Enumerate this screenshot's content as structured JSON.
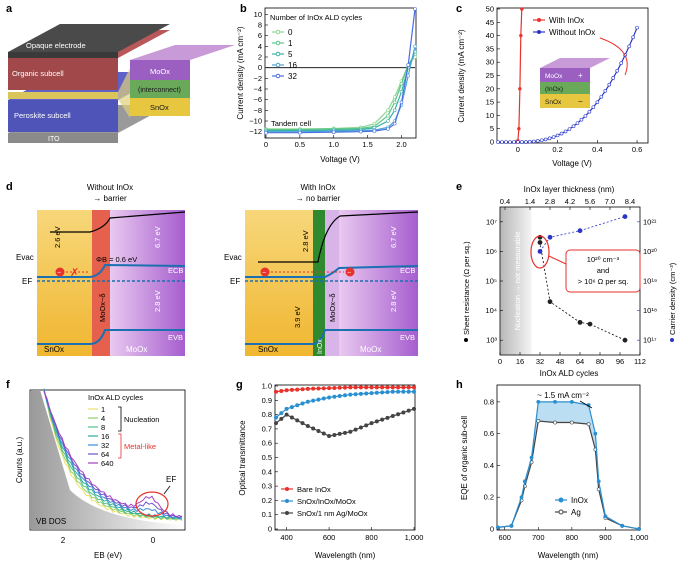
{
  "panels": {
    "a": {
      "letter": "a",
      "layers": [
        "Opaque electrode",
        "Organic subcell",
        "Peroskite subcell",
        "ITO"
      ],
      "interconnect_layers": [
        "MoOx",
        "(interconnect)",
        "SnOx"
      ]
    },
    "b": {
      "letter": "b",
      "ylabel": "Current density (mA cm⁻²)",
      "xlabel": "Voltage (V)",
      "legend_title": "Number of InOx ALD cycles",
      "cycles": [
        "0",
        "1",
        "5",
        "16",
        "32"
      ],
      "colors": [
        "#8fd68f",
        "#5cc68a",
        "#3bb3a4",
        "#4ba3d8",
        "#4a6fe0"
      ],
      "note": "Tandem cell",
      "xticks": [
        "0",
        "0.5",
        "1.0",
        "1.5",
        "2.0"
      ],
      "yticks": [
        "10",
        "8",
        "6",
        "4",
        "2",
        "0",
        "−2",
        "−4",
        "−6",
        "−8",
        "−10",
        "−12"
      ]
    },
    "c": {
      "letter": "c",
      "ylabel": "Current density (mA cm⁻²)",
      "xlabel": "Voltage (V)",
      "legend": [
        "With InOx",
        "Without InOx"
      ],
      "colors": [
        "#e8322c",
        "#2a35c8"
      ],
      "stack": [
        "MoOx",
        "(InOx)",
        "SnOx"
      ],
      "signs": [
        "+",
        "−"
      ],
      "xticks": [
        "0",
        "0.2",
        "0.4",
        "0.6"
      ],
      "yticks": [
        "0",
        "5",
        "10",
        "15",
        "20",
        "25",
        "30",
        "35",
        "40",
        "45",
        "50"
      ]
    },
    "d": {
      "letter": "d",
      "left": {
        "title": "Without InOx",
        "subtitle": "→ barrier",
        "energies": [
          "2.6 eV",
          "ΦB = 0.6 eV",
          "6.7 eV",
          "2.8 eV"
        ],
        "levels": [
          "Evac",
          "EF",
          "ECB",
          "EVB"
        ],
        "materials": [
          "SnOx",
          "MoOx−δ",
          "MoOx"
        ]
      },
      "right": {
        "title": "With InOx",
        "subtitle": "→ no barrier",
        "energies": [
          "2.8 eV",
          "6.7 eV",
          "2.8 eV",
          "3.9 eV"
        ],
        "levels": [
          "Evac",
          "EF",
          "ECB",
          "EVB"
        ],
        "materials": [
          "SnOx",
          "InOx",
          "MoOx−δ",
          "MoOx"
        ]
      }
    },
    "e": {
      "letter": "e",
      "top_axis_label": "InOx layer thickness (nm)",
      "top_ticks": [
        "0.4",
        "1.4",
        "2.8",
        "4.2",
        "5.6",
        "7.0",
        "8.4"
      ],
      "xlabel": "InOx ALD cycles",
      "xticks": [
        "0",
        "16",
        "32",
        "48",
        "64",
        "80",
        "96",
        "112"
      ],
      "ylabel_left": "Sheet resistance (Ω per sq.)",
      "ylabel_right": "Carrier density (cm⁻³)",
      "left_ticks": [
        "10³",
        "10⁴",
        "10⁵",
        "10⁶",
        "10⁷"
      ],
      "right_ticks": [
        "10¹⁷",
        "10¹⁸",
        "10¹⁹",
        "10²⁰",
        "10²¹"
      ],
      "shaded_label": "Nucleation → not measurable",
      "callout": [
        "10²⁰ cm⁻³",
        "and",
        "> 10⁶ Ω per sq."
      ]
    },
    "f": {
      "letter": "f",
      "ylabel": "Counts (a.u.)",
      "xlabel": "EB (eV)",
      "xticks": [
        "2",
        "0"
      ],
      "legend_title": "InOx ALD cycles",
      "cycles": [
        "1",
        "4",
        "8",
        "16",
        "32",
        "64",
        "640"
      ],
      "colors": [
        "#f0e070",
        "#8ed26a",
        "#4fc08a",
        "#2ea9a0",
        "#3a8fd8",
        "#6a55d0",
        "#a040c0"
      ],
      "group_labels": [
        "Nucleation",
        "Metal-like"
      ],
      "vb_label": "VB DOS",
      "ef_label": "EF"
    },
    "g": {
      "letter": "g",
      "ylabel": "Optical transmittance",
      "xlabel": "Wavelength (nm)",
      "xticks": [
        "400",
        "600",
        "800",
        "1,000"
      ],
      "yticks": [
        "0",
        "0.1",
        "0.2",
        "0.3",
        "0.4",
        "0.5",
        "0.6",
        "0.7",
        "0.8",
        "0.9",
        "1.0"
      ],
      "legend": [
        "Bare InOx",
        "SnOx/InOx/MoOx",
        "SnOx/1 nm Ag/MoOx"
      ],
      "colors": [
        "#e8322c",
        "#2a8fd0",
        "#444444"
      ]
    },
    "h": {
      "letter": "h",
      "ylabel": "EQE of organic sub-cell",
      "xlabel": "Wavelength (nm)",
      "xticks": [
        "600",
        "700",
        "800",
        "900",
        "1,000"
      ],
      "yticks": [
        "0",
        "0.2",
        "0.4",
        "0.6",
        "0.8"
      ],
      "legend": [
        "InOx",
        "Ag"
      ],
      "colors": [
        "#2a8fd0",
        "#444444"
      ],
      "annotation": "~ 1.5 mA cm⁻²"
    }
  },
  "chart_data": [
    {
      "panel": "b",
      "type": "line",
      "title": "",
      "xlabel": "Voltage (V)",
      "ylabel": "Current density (mA cm⁻²)",
      "xlim": [
        0,
        2.2
      ],
      "ylim": [
        -13,
        11
      ],
      "legend_title": "Number of InOx ALD cycles",
      "series": [
        {
          "name": "0",
          "x": [
            0,
            0.5,
            1.0,
            1.4,
            1.6,
            1.8,
            1.9,
            2.0,
            2.1,
            2.2
          ],
          "values": [
            -11.5,
            -11.5,
            -11.4,
            -11.2,
            -10.5,
            -8,
            -5.5,
            -2.5,
            0.5,
            2
          ]
        },
        {
          "name": "1",
          "x": [
            0,
            0.5,
            1.0,
            1.4,
            1.6,
            1.8,
            1.9,
            2.0,
            2.1,
            2.2
          ],
          "values": [
            -11.6,
            -11.6,
            -11.5,
            -11.4,
            -11,
            -9,
            -6.5,
            -3,
            0.5,
            2.5
          ]
        },
        {
          "name": "5",
          "x": [
            0,
            0.5,
            1.0,
            1.4,
            1.6,
            1.8,
            1.9,
            2.0,
            2.1,
            2.2
          ],
          "values": [
            -11.8,
            -11.8,
            -11.7,
            -11.6,
            -11.3,
            -10,
            -8,
            -4.5,
            0,
            3
          ]
        },
        {
          "name": "16",
          "x": [
            0,
            0.5,
            1.0,
            1.4,
            1.6,
            1.8,
            1.9,
            2.0,
            2.1,
            2.2
          ],
          "values": [
            -12,
            -12,
            -11.9,
            -11.8,
            -11.7,
            -11.2,
            -10,
            -7,
            -1.5,
            4
          ]
        },
        {
          "name": "32",
          "x": [
            0,
            0.5,
            1.0,
            1.4,
            1.6,
            1.8,
            1.9,
            2.0,
            2.1,
            2.2
          ],
          "values": [
            -12.2,
            -12.2,
            -12.1,
            -12,
            -11.9,
            -11.5,
            -10.5,
            -6.5,
            0.5,
            11
          ]
        }
      ]
    },
    {
      "panel": "c",
      "type": "line",
      "xlabel": "Voltage (V)",
      "ylabel": "Current density (mA cm⁻²)",
      "xlim": [
        -0.1,
        0.65
      ],
      "ylim": [
        0,
        50
      ],
      "series": [
        {
          "name": "With InOx",
          "x": [
            -0.01,
            0.0,
            0.005,
            0.01,
            0.015,
            0.02
          ],
          "values": [
            0,
            0.5,
            5,
            20,
            40,
            50
          ]
        },
        {
          "name": "Without InOx",
          "x": [
            -0.1,
            0,
            0.1,
            0.2,
            0.3,
            0.4,
            0.5,
            0.6
          ],
          "values": [
            0,
            0,
            0.5,
            2,
            6,
            14,
            26,
            43
          ]
        }
      ]
    },
    {
      "panel": "e",
      "type": "scatter",
      "xlabel": "InOx ALD cycles",
      "xlim": [
        0,
        112
      ],
      "series": [
        {
          "name": "Sheet resistance",
          "axis": "left",
          "x": [
            32,
            32,
            40,
            64,
            72,
            100
          ],
          "values": [
            3000000,
            2000000,
            20000,
            4000,
            3500,
            1000
          ]
        },
        {
          "name": "Carrier density",
          "axis": "right",
          "x": [
            32,
            40,
            64,
            100
          ],
          "values": [
            1e+20,
            3e+20,
            5e+20,
            1.5e+21
          ]
        }
      ]
    },
    {
      "panel": "g",
      "type": "line",
      "xlabel": "Wavelength (nm)",
      "ylabel": "Optical transmittance",
      "xlim": [
        350,
        1000
      ],
      "ylim": [
        0,
        1.0
      ],
      "series": [
        {
          "name": "Bare InOx",
          "x": [
            350,
            400,
            500,
            600,
            700,
            800,
            900,
            1000
          ],
          "values": [
            0.96,
            0.97,
            0.98,
            0.985,
            0.99,
            0.99,
            0.99,
            0.99
          ]
        },
        {
          "name": "SnOx/InOx/MoOx",
          "x": [
            350,
            400,
            500,
            600,
            700,
            800,
            900,
            1000
          ],
          "values": [
            0.78,
            0.84,
            0.89,
            0.92,
            0.94,
            0.95,
            0.96,
            0.96
          ]
        },
        {
          "name": "SnOx/1 nm Ag/MoOx",
          "x": [
            350,
            400,
            500,
            600,
            700,
            800,
            900,
            1000
          ],
          "values": [
            0.74,
            0.8,
            0.72,
            0.65,
            0.68,
            0.74,
            0.79,
            0.84
          ]
        }
      ]
    },
    {
      "panel": "h",
      "type": "line",
      "xlabel": "Wavelength (nm)",
      "ylabel": "EQE of organic sub-cell",
      "xlim": [
        580,
        1000
      ],
      "ylim": [
        0,
        0.9
      ],
      "series": [
        {
          "name": "InOx",
          "x": [
            580,
            620,
            650,
            660,
            680,
            700,
            750,
            800,
            850,
            870,
            880,
            900,
            950,
            1000
          ],
          "values": [
            0.01,
            0.02,
            0.2,
            0.3,
            0.45,
            0.8,
            0.8,
            0.8,
            0.78,
            0.6,
            0.3,
            0.08,
            0.02,
            0.0
          ]
        },
        {
          "name": "Ag",
          "x": [
            580,
            620,
            650,
            660,
            680,
            700,
            750,
            800,
            850,
            870,
            880,
            900,
            950,
            1000
          ],
          "values": [
            0.01,
            0.02,
            0.18,
            0.27,
            0.42,
            0.68,
            0.67,
            0.67,
            0.66,
            0.5,
            0.25,
            0.07,
            0.02,
            0.0
          ]
        }
      ]
    }
  ]
}
